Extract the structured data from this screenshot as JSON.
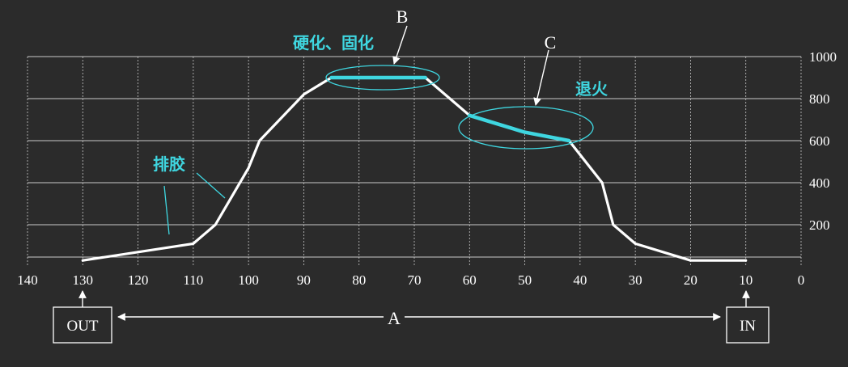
{
  "chart_data": {
    "type": "line",
    "xlim": [
      140,
      0
    ],
    "ylim": [
      0,
      1000
    ],
    "x_ticks": [
      "140",
      "130",
      "120",
      "110",
      "100",
      "90",
      "80",
      "70",
      "60",
      "50",
      "40",
      "30",
      "20",
      "10",
      "0"
    ],
    "y_ticks": [
      "1000",
      "800",
      "600",
      "400",
      "200"
    ],
    "grid": true,
    "series": [
      {
        "values": [
          {
            "x": 130,
            "y": 30
          },
          {
            "x": 110,
            "y": 110
          },
          {
            "x": 106,
            "y": 200
          },
          {
            "x": 100,
            "y": 470
          },
          {
            "x": 98,
            "y": 600
          },
          {
            "x": 90,
            "y": 820
          },
          {
            "x": 85,
            "y": 900
          },
          {
            "x": 68,
            "y": 900
          },
          {
            "x": 60,
            "y": 720
          },
          {
            "x": 50,
            "y": 640
          },
          {
            "x": 42,
            "y": 600
          },
          {
            "x": 36,
            "y": 400
          },
          {
            "x": 34,
            "y": 200
          },
          {
            "x": 30,
            "y": 110
          },
          {
            "x": 20,
            "y": 30
          },
          {
            "x": 10,
            "y": 30
          }
        ],
        "color": "#ffffff"
      }
    ],
    "highlights": [
      {
        "from_x": 85,
        "to_x": 68,
        "color": "#3fd6e0",
        "label": "B"
      },
      {
        "from_x": 60,
        "to_x": 42,
        "color": "#3fd6e0",
        "label": "C"
      }
    ],
    "annotations": {
      "B": "B",
      "C": "C",
      "zone_cure": "硬化、固化",
      "zone_anneal": "退火",
      "zone_debind": "排胶",
      "A": "A",
      "out_box": "OUT",
      "in_box": "IN"
    }
  },
  "colors": {
    "background": "#2b2b2b",
    "grid": "#c8c8c8",
    "curve": "#ffffff",
    "accent": "#3fd6e0"
  }
}
